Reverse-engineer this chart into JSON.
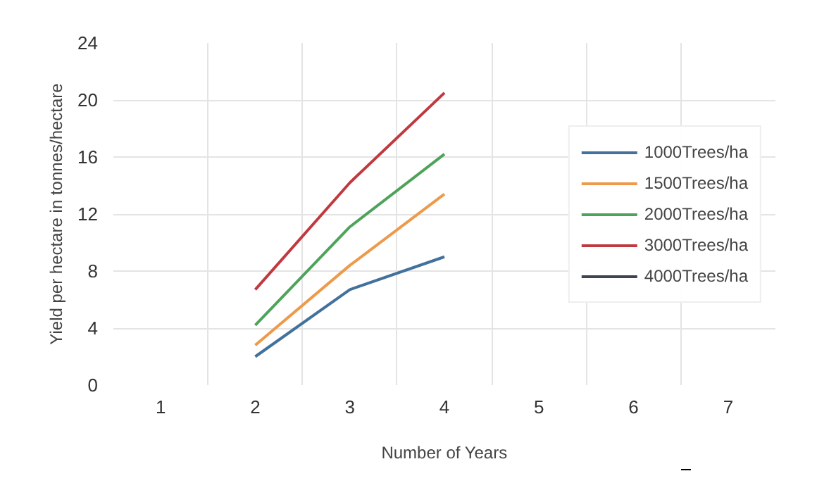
{
  "chart_data": {
    "type": "line",
    "xlabel": "Number of Years",
    "ylabel": "Yield per hectare in tonnes/hectare",
    "categories": [
      "1",
      "2",
      "3",
      "4",
      "5",
      "6",
      "7"
    ],
    "series": [
      {
        "name": "1000Trees/ha",
        "color": "#41719c",
        "values": [
          null,
          2,
          6.7,
          9,
          null,
          null,
          null
        ]
      },
      {
        "name": "1500Trees/ha",
        "color": "#ed9a4a",
        "values": [
          null,
          2.8,
          8.4,
          13.4,
          null,
          null,
          null
        ]
      },
      {
        "name": "2000Trees/ha",
        "color": "#4ea35a",
        "values": [
          null,
          4.2,
          11.1,
          16.2,
          null,
          null,
          null
        ]
      },
      {
        "name": "3000Trees/ha",
        "color": "#c0393f",
        "values": [
          null,
          6.7,
          14.2,
          20.5,
          null,
          null,
          null
        ]
      },
      {
        "name": "4000Trees/ha",
        "color": "#3d4450",
        "values": [
          null,
          null,
          null,
          null,
          null,
          null,
          null
        ]
      }
    ],
    "ylim": [
      0,
      24
    ],
    "yticks": [
      0,
      4,
      8,
      12,
      16,
      20,
      24
    ],
    "grid": true,
    "legend": "right",
    "marker": "none",
    "line_style": "solid"
  }
}
